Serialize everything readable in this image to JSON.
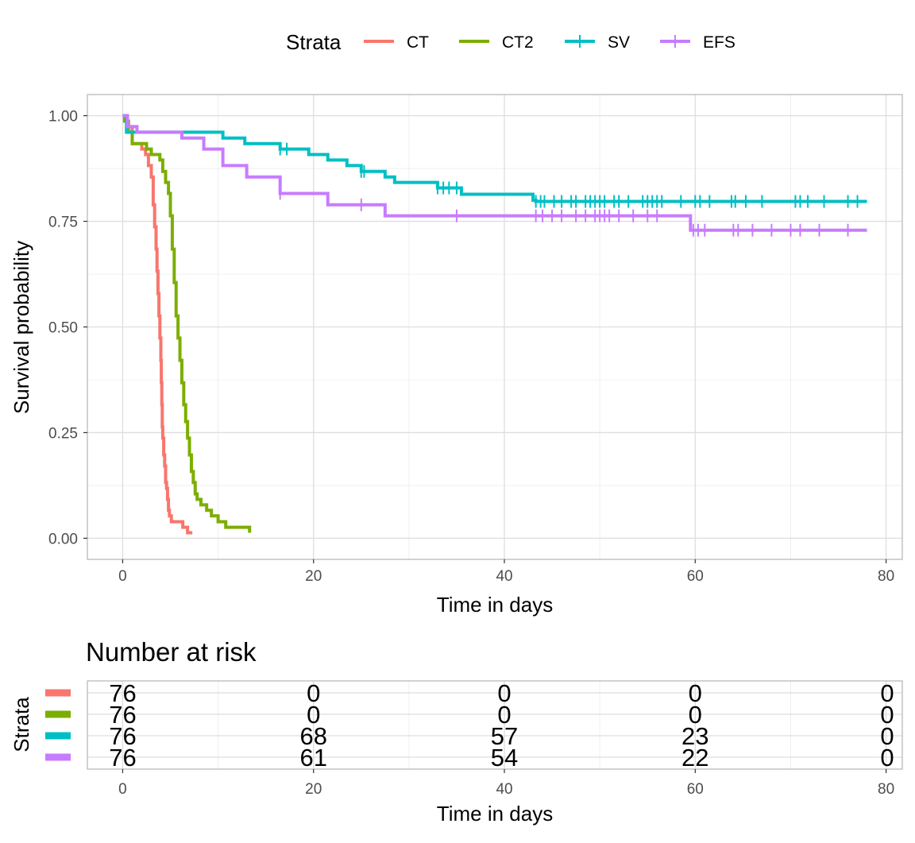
{
  "legend": {
    "title": "Strata"
  },
  "plot": {
    "xlabel": "Time in days",
    "ylabel": "Survival probability"
  },
  "risk_table": {
    "title": "Number at risk",
    "ylabel": "Strata",
    "xlabel": "Time in days",
    "times": [
      0,
      20,
      40,
      60,
      80
    ],
    "rows": [
      {
        "strata": "CT",
        "counts": [
          "76",
          "0",
          "0",
          "0",
          "0"
        ]
      },
      {
        "strata": "CT2",
        "counts": [
          "76",
          "0",
          "0",
          "0",
          "0"
        ]
      },
      {
        "strata": "SV",
        "counts": [
          "76",
          "68",
          "57",
          "23",
          "0"
        ]
      },
      {
        "strata": "EFS",
        "counts": [
          "76",
          "61",
          "54",
          "22",
          "0"
        ]
      }
    ]
  },
  "chart_data": {
    "type": "line",
    "title": "",
    "xlabel": "Time in days",
    "ylabel": "Survival probability",
    "xlim": [
      -3.7,
      81.7
    ],
    "ylim": [
      -0.05,
      1.05
    ],
    "x_ticks": [
      0,
      20,
      40,
      60,
      80
    ],
    "y_ticks": [
      0,
      0.25,
      0.5,
      0.75,
      1.0
    ],
    "y_tick_labels": [
      "0.00",
      "0.25",
      "0.50",
      "0.75",
      "1.00"
    ],
    "grid": true,
    "legend_position": "top",
    "series": [
      {
        "name": "CT",
        "color": "#F8766D",
        "censor_marks": false,
        "x": [
          0,
          0.2,
          0.6,
          1.0,
          2.0,
          2.4,
          2.7,
          3.0,
          3.2,
          3.35,
          3.5,
          3.6,
          3.7,
          3.8,
          3.9,
          4.0,
          4.05,
          4.1,
          4.15,
          4.2,
          4.3,
          4.4,
          4.5,
          4.6,
          4.7,
          4.8,
          4.9,
          5.1,
          5.3,
          5.7,
          6.3,
          6.8,
          7.3
        ],
        "y": [
          1.0,
          0.987,
          0.974,
          0.934,
          0.921,
          0.908,
          0.882,
          0.855,
          0.789,
          0.737,
          0.684,
          0.632,
          0.579,
          0.526,
          0.474,
          0.421,
          0.368,
          0.316,
          0.263,
          0.237,
          0.197,
          0.171,
          0.132,
          0.118,
          0.092,
          0.066,
          0.053,
          0.039,
          0.039,
          0.039,
          0.026,
          0.013,
          0.013
        ]
      },
      {
        "name": "CT2",
        "color": "#7CAE00",
        "censor_marks": false,
        "x": [
          0,
          0.2,
          0.6,
          1.0,
          2.5,
          3.0,
          3.9,
          4.2,
          4.5,
          4.8,
          5.0,
          5.2,
          5.4,
          5.6,
          5.8,
          6.0,
          6.2,
          6.4,
          6.6,
          6.8,
          7.0,
          7.2,
          7.4,
          7.6,
          7.8,
          8.2,
          8.8,
          9.3,
          10.0,
          10.8,
          13.3
        ],
        "y": [
          1.0,
          0.987,
          0.961,
          0.934,
          0.921,
          0.908,
          0.895,
          0.868,
          0.842,
          0.816,
          0.763,
          0.684,
          0.605,
          0.526,
          0.474,
          0.421,
          0.368,
          0.316,
          0.276,
          0.237,
          0.197,
          0.158,
          0.132,
          0.105,
          0.092,
          0.079,
          0.066,
          0.053,
          0.039,
          0.026,
          0.013
        ]
      },
      {
        "name": "SV",
        "color": "#00BFC4",
        "censor_marks": true,
        "x": [
          0,
          0.4,
          10.5,
          12.8,
          16.5,
          19.5,
          21.5,
          23.5,
          25.0,
          27.5,
          28.5,
          29.0,
          33.0,
          35.5,
          43.0,
          43.3,
          78.0
        ],
        "y": [
          1.0,
          0.961,
          0.947,
          0.934,
          0.921,
          0.908,
          0.895,
          0.882,
          0.868,
          0.855,
          0.842,
          0.842,
          0.829,
          0.814,
          0.8,
          0.797,
          0.797
        ],
        "censor_x": [
          16.5,
          17.2,
          25.0,
          25.3,
          33.0,
          33.6,
          34.2,
          35.0,
          43.3,
          43.8,
          44.2,
          45.2,
          46.0,
          47.0,
          47.5,
          48.5,
          49.0,
          49.5,
          50.0,
          50.5,
          51.5,
          52.0,
          53.0,
          54.5,
          55.0,
          55.5,
          56.0,
          56.5,
          58.5,
          60.0,
          60.5,
          61.5,
          63.8,
          64.2,
          65.3,
          67.0,
          70.5,
          71.0,
          71.8,
          73.5,
          76.0,
          77.0
        ],
        "censor_y": [
          0.921,
          0.921,
          0.868,
          0.868,
          0.829,
          0.829,
          0.829,
          0.829,
          0.797,
          0.797,
          0.797,
          0.797,
          0.797,
          0.797,
          0.797,
          0.797,
          0.797,
          0.797,
          0.797,
          0.797,
          0.797,
          0.797,
          0.797,
          0.797,
          0.797,
          0.797,
          0.797,
          0.797,
          0.797,
          0.797,
          0.797,
          0.797,
          0.797,
          0.797,
          0.797,
          0.797,
          0.797,
          0.797,
          0.797,
          0.797,
          0.797,
          0.797
        ]
      },
      {
        "name": "EFS",
        "color": "#C77CFF",
        "censor_marks": true,
        "x": [
          0,
          0.5,
          1.5,
          6.2,
          8.5,
          10.5,
          13.0,
          16.5,
          21.5,
          27.5,
          59.5,
          78.0
        ],
        "y": [
          1.0,
          0.974,
          0.961,
          0.947,
          0.921,
          0.882,
          0.855,
          0.816,
          0.789,
          0.763,
          0.729,
          0.729
        ],
        "censor_x": [
          16.5,
          25.0,
          35.0,
          43.3,
          44.0,
          45.0,
          46.0,
          47.5,
          48.5,
          49.5,
          50.0,
          50.5,
          51.0,
          52.0,
          53.5,
          55.0,
          56.0,
          59.8,
          60.3,
          61.0,
          64.0,
          64.5,
          66.0,
          68.0,
          70.0,
          71.0,
          73.0,
          76.0
        ],
        "censor_y": [
          0.816,
          0.789,
          0.763,
          0.763,
          0.763,
          0.763,
          0.763,
          0.763,
          0.763,
          0.763,
          0.763,
          0.763,
          0.763,
          0.763,
          0.763,
          0.763,
          0.763,
          0.729,
          0.729,
          0.729,
          0.729,
          0.729,
          0.729,
          0.729,
          0.729,
          0.729,
          0.729,
          0.729
        ]
      }
    ]
  }
}
